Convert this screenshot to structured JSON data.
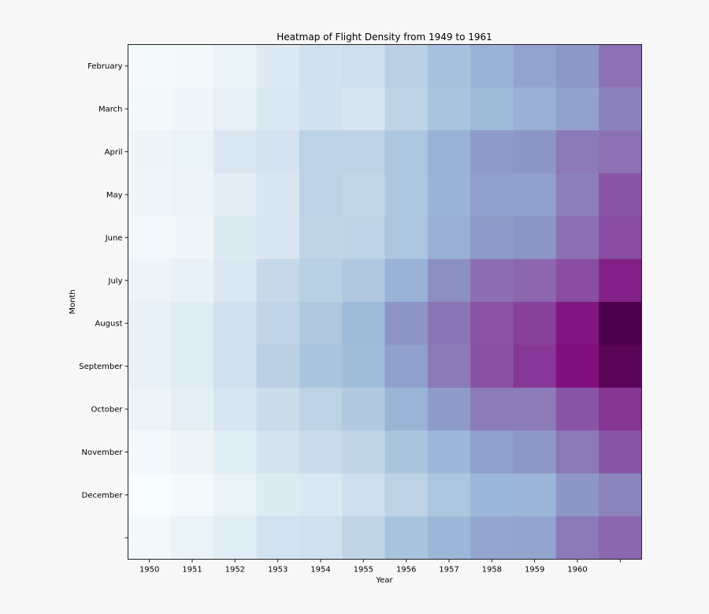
{
  "chart_data": {
    "type": "heatmap",
    "title": "Heatmap of Flight Density from 1949 to 1961",
    "xlabel": "Year",
    "ylabel": "Month",
    "x_tick_labels": [
      "1950",
      "1951",
      "1952",
      "1953",
      "1954",
      "1955",
      "1956",
      "1957",
      "1958",
      "1959",
      "1960",
      ""
    ],
    "y_tick_labels": [
      "February",
      "March",
      "April",
      "May",
      "June",
      "July",
      "August",
      "September",
      "October",
      "November",
      "December",
      ""
    ],
    "colormap": "BuPu",
    "colormap_stops": [
      "#f7fcfd",
      "#e0ecf4",
      "#bfd3e6",
      "#9ebcda",
      "#8c96c6",
      "#8c6bb1",
      "#88419d",
      "#810f7c",
      "#4d004b"
    ],
    "value_range": [
      104,
      622
    ],
    "grid": false,
    "values_by_column": [
      [
        112,
        118,
        132,
        129,
        121,
        135,
        148,
        148,
        136,
        119,
        104,
        118
      ],
      [
        115,
        126,
        141,
        135,
        125,
        149,
        170,
        170,
        158,
        133,
        114,
        140
      ],
      [
        145,
        150,
        178,
        163,
        172,
        178,
        199,
        199,
        184,
        162,
        146,
        166
      ],
      [
        171,
        180,
        193,
        181,
        183,
        218,
        230,
        242,
        209,
        191,
        172,
        194
      ],
      [
        196,
        196,
        236,
        235,
        229,
        243,
        264,
        272,
        237,
        211,
        180,
        201
      ],
      [
        204,
        188,
        235,
        227,
        234,
        264,
        302,
        293,
        259,
        229,
        203,
        229
      ],
      [
        242,
        233,
        267,
        269,
        270,
        315,
        364,
        347,
        312,
        274,
        237,
        278
      ],
      [
        284,
        277,
        317,
        313,
        318,
        374,
        413,
        405,
        355,
        306,
        271,
        306
      ],
      [
        315,
        301,
        356,
        348,
        355,
        422,
        465,
        467,
        404,
        347,
        305,
        336
      ],
      [
        340,
        318,
        362,
        348,
        363,
        435,
        491,
        505,
        404,
        359,
        310,
        337
      ],
      [
        360,
        342,
        406,
        396,
        420,
        472,
        548,
        559,
        463,
        407,
        362,
        405
      ],
      [
        417,
        391,
        419,
        461,
        472,
        535,
        622,
        606,
        508,
        461,
        390,
        432
      ]
    ]
  }
}
